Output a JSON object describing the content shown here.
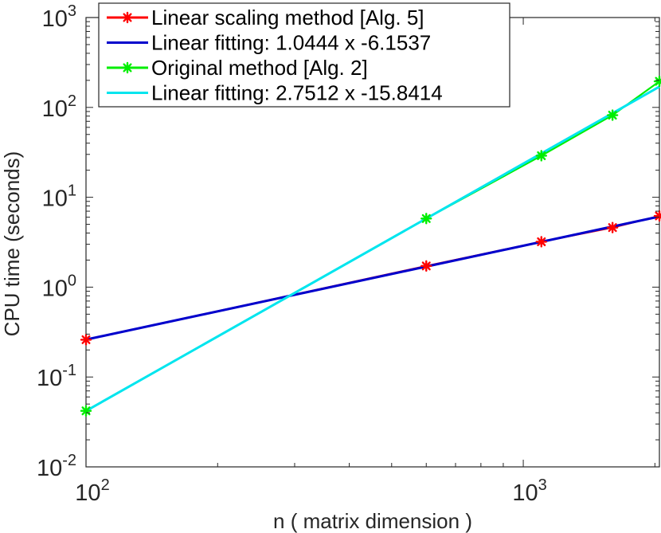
{
  "chart_data": {
    "type": "line",
    "xscale": "log",
    "yscale": "log",
    "xlabel": "n ( matrix dimension )",
    "ylabel": "CPU time (seconds)",
    "xlim": [
      100,
      2048
    ],
    "ylim": [
      0.01,
      1000
    ],
    "xticks": [
      {
        "value": 100,
        "base": "10",
        "exp": "2"
      },
      {
        "value": 1000,
        "base": "10",
        "exp": "3"
      }
    ],
    "yticks": [
      {
        "value": 0.01,
        "base": "10",
        "exp": "-2"
      },
      {
        "value": 0.1,
        "base": "10",
        "exp": "-1"
      },
      {
        "value": 1,
        "base": "10",
        "exp": "0"
      },
      {
        "value": 10,
        "base": "10",
        "exp": "1"
      },
      {
        "value": 100,
        "base": "10",
        "exp": "2"
      },
      {
        "value": 1000,
        "base": "10",
        "exp": "3"
      }
    ],
    "grid": false,
    "legend_position": "top-left",
    "series": [
      {
        "name": "Linear scaling method [Alg. 5]",
        "color": "#ff0000",
        "kind": "markers-line",
        "marker": "asterisk",
        "x": [
          100,
          600,
          1100,
          1600,
          2048
        ],
        "y": [
          0.26,
          1.72,
          3.2,
          4.6,
          6.2
        ]
      },
      {
        "name": "Linear fitting: 1.0444 x -6.1537",
        "color": "#0000cc",
        "kind": "fit",
        "slope": 1.0444,
        "intercept": -6.1537,
        "x_range": [
          100,
          2048
        ]
      },
      {
        "name": "Original method [Alg. 2]",
        "color": "#00ee00",
        "kind": "markers-line",
        "marker": "asterisk",
        "x": [
          100,
          600,
          1100,
          1600,
          2048
        ],
        "y": [
          0.042,
          5.8,
          29,
          82,
          195
        ]
      },
      {
        "name": "Linear fitting: 2.7512 x -15.8414",
        "color": "#00e5ee",
        "kind": "fit",
        "slope": 2.7512,
        "intercept": -15.8414,
        "x_range": [
          100,
          2048
        ]
      }
    ]
  }
}
